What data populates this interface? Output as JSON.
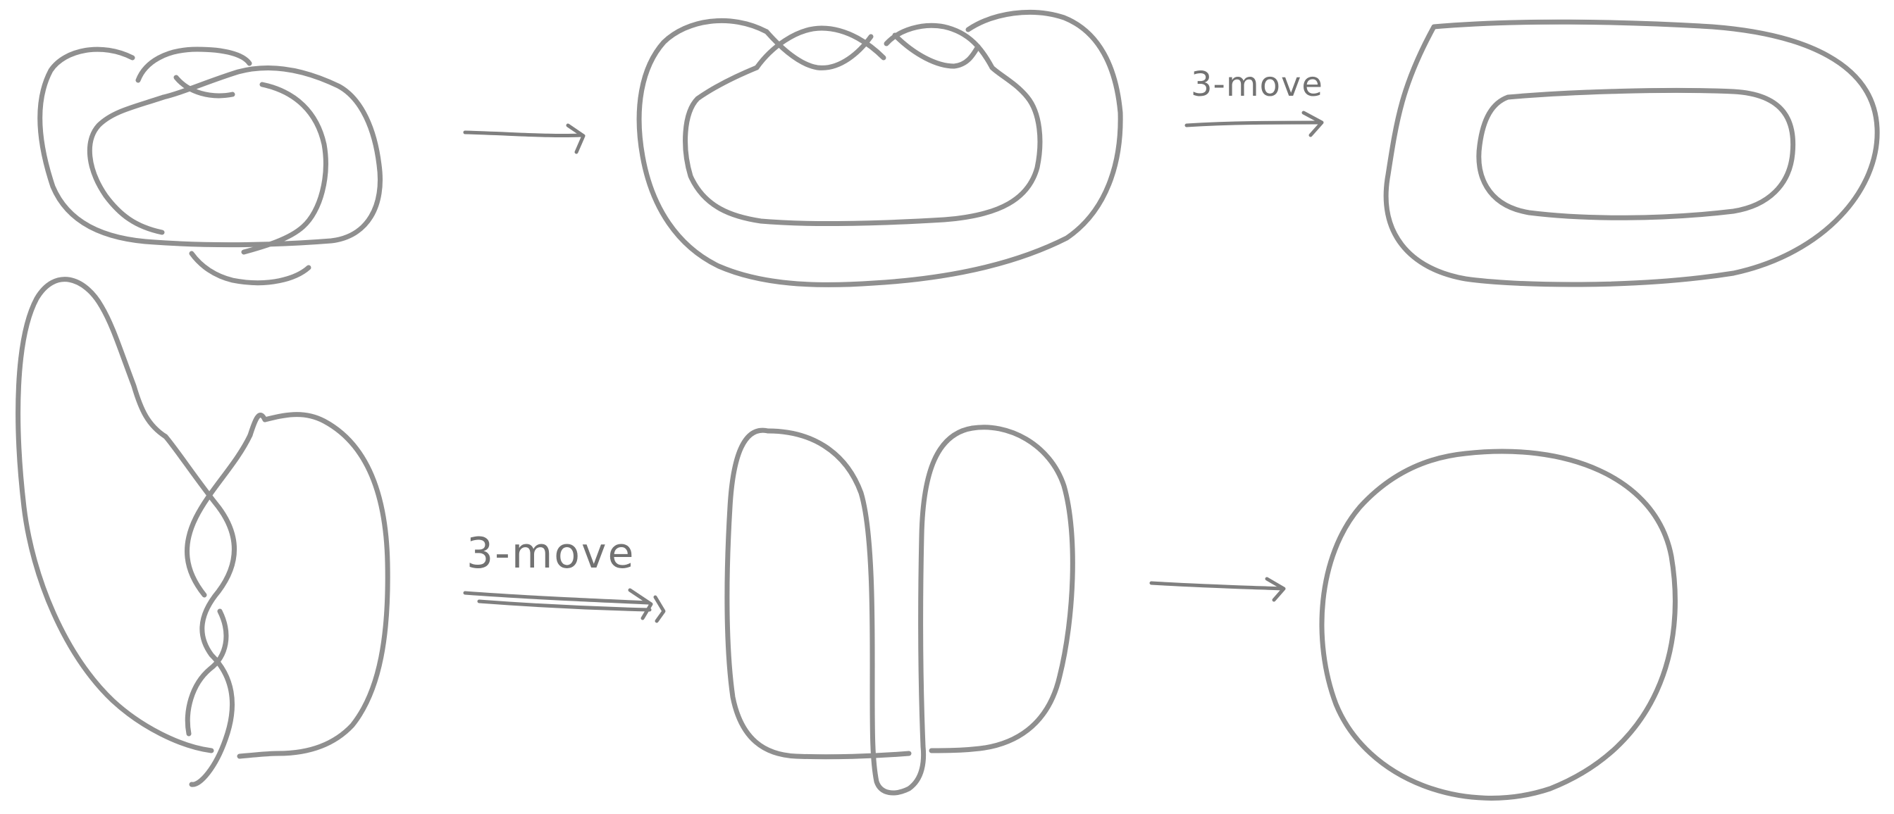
{
  "diagram": {
    "top_row": {
      "arrow_1_label": "",
      "arrow_2_label": "3-move"
    },
    "bottom_row": {
      "arrow_1_label": "3-move",
      "arrow_2_label": ""
    },
    "colors": {
      "stroke": "#8f8f8f",
      "arrow": "#7f7f7f",
      "label": "#727272",
      "background": "#ffffff"
    }
  }
}
